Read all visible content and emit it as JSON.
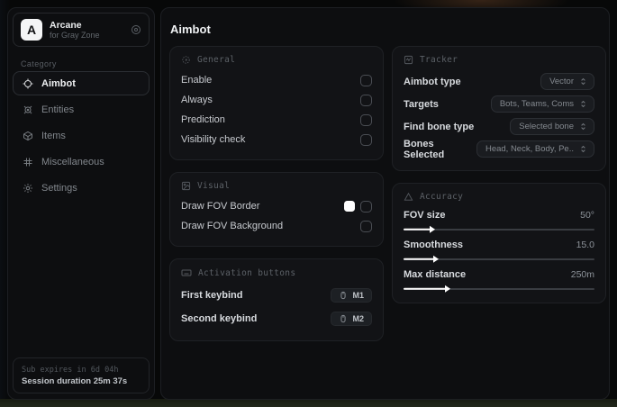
{
  "sidebar": {
    "app": {
      "initial": "A",
      "name": "Arcane",
      "subtitle": "for Gray Zone"
    },
    "category_label": "Category",
    "items": [
      {
        "label": "Aimbot"
      },
      {
        "label": "Entities"
      },
      {
        "label": "Items"
      },
      {
        "label": "Miscellaneous"
      },
      {
        "label": "Settings"
      }
    ],
    "footer": {
      "expires": "Sub expires in 6d 04h",
      "session": "Session duration 25m 37s"
    }
  },
  "main": {
    "title": "Aimbot",
    "cards": {
      "general": {
        "title": "General",
        "rows": [
          {
            "label": "Enable",
            "checked": false
          },
          {
            "label": "Always",
            "checked": false
          },
          {
            "label": "Prediction",
            "checked": false
          },
          {
            "label": "Visibility check",
            "checked": false
          }
        ]
      },
      "visual": {
        "title": "Visual",
        "rows": [
          {
            "label": "Draw FOV Border",
            "swatch": "#ffffff",
            "checked": false
          },
          {
            "label": "Draw FOV Background",
            "checked": false
          }
        ]
      },
      "activation": {
        "title": "Activation buttons",
        "rows": [
          {
            "label": "First keybind",
            "key": "M1"
          },
          {
            "label": "Second keybind",
            "key": "M2"
          }
        ]
      },
      "tracker": {
        "title": "Tracker",
        "rows": [
          {
            "label": "Aimbot type",
            "value": "Vector"
          },
          {
            "label": "Targets",
            "value": "Bots, Teams, Coms"
          },
          {
            "label": "Find bone type",
            "value": "Selected bone"
          },
          {
            "label": "Bones Selected",
            "value": "Head, Neck, Body, Pe.."
          }
        ]
      },
      "accuracy": {
        "title": "Accuracy",
        "sliders": [
          {
            "label": "FOV size",
            "value": "50°",
            "percent": 14
          },
          {
            "label": "Smoothness",
            "value": "15.0",
            "percent": 16
          },
          {
            "label": "Max distance",
            "value": "250m",
            "percent": 22
          }
        ]
      }
    }
  },
  "colors": {
    "panel_bg": "#0d0e10",
    "card_bg": "#121316",
    "accent_swatch": "#ffffff",
    "dim_text": "#5c6167"
  }
}
